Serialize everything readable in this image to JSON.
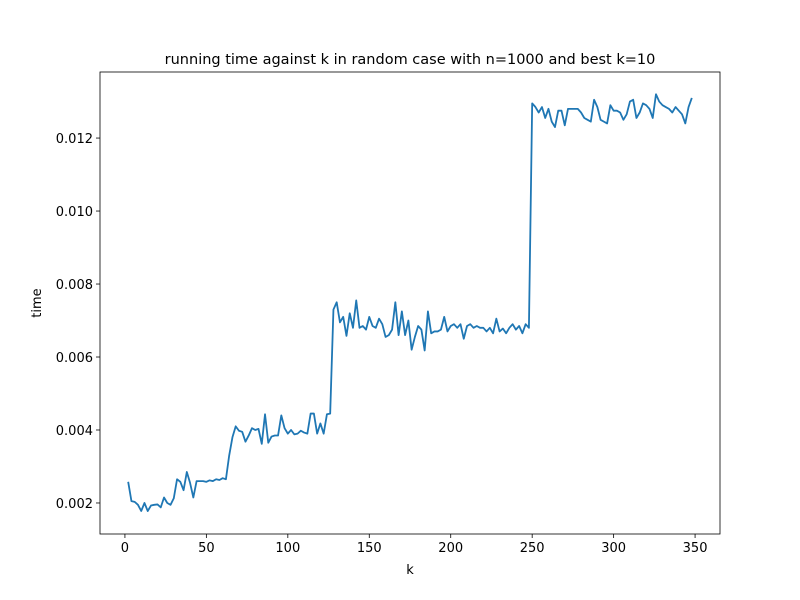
{
  "chart_data": {
    "type": "line",
    "title": "running time against k in random case with n=1000 and best k=10",
    "x_label": "k",
    "y_label": "time",
    "x": [
      2,
      4,
      6,
      8,
      10,
      12,
      14,
      16,
      18,
      20,
      22,
      24,
      26,
      28,
      30,
      32,
      34,
      36,
      38,
      40,
      42,
      44,
      46,
      48,
      50,
      52,
      54,
      56,
      58,
      60,
      62,
      64,
      66,
      68,
      70,
      72,
      74,
      76,
      78,
      80,
      82,
      84,
      86,
      88,
      90,
      92,
      94,
      96,
      98,
      100,
      102,
      104,
      106,
      108,
      110,
      112,
      114,
      116,
      118,
      120,
      122,
      124,
      126,
      128,
      130,
      132,
      134,
      136,
      138,
      140,
      142,
      144,
      146,
      148,
      150,
      152,
      154,
      156,
      158,
      160,
      162,
      164,
      166,
      168,
      170,
      172,
      174,
      176,
      178,
      180,
      182,
      184,
      186,
      188,
      190,
      192,
      194,
      196,
      198,
      200,
      202,
      204,
      206,
      208,
      210,
      212,
      214,
      216,
      218,
      220,
      222,
      224,
      226,
      228,
      230,
      232,
      234,
      236,
      238,
      240,
      242,
      244,
      246,
      248,
      250,
      252,
      254,
      256,
      258,
      260,
      262,
      264,
      266,
      268,
      270,
      272,
      274,
      276,
      278,
      280,
      282,
      284,
      286,
      288,
      290,
      292,
      294,
      296,
      298,
      300,
      302,
      304,
      306,
      308,
      310,
      312,
      314,
      316,
      318,
      320,
      322,
      324,
      326,
      328,
      330,
      332,
      334,
      336,
      338,
      340,
      342,
      344,
      346,
      348
    ],
    "series": [
      {
        "name": "time",
        "color": "#1f77b4",
        "values": [
          0.00258,
          0.00205,
          0.00203,
          0.00195,
          0.00178,
          0.002,
          0.00178,
          0.00193,
          0.00195,
          0.00196,
          0.00188,
          0.00215,
          0.002,
          0.00195,
          0.00213,
          0.00265,
          0.00258,
          0.00235,
          0.00285,
          0.00255,
          0.00215,
          0.0026,
          0.0026,
          0.0026,
          0.00258,
          0.00262,
          0.0026,
          0.00265,
          0.00263,
          0.00268,
          0.00265,
          0.0033,
          0.0038,
          0.0041,
          0.00398,
          0.00395,
          0.00368,
          0.00385,
          0.00405,
          0.004,
          0.00403,
          0.00362,
          0.00443,
          0.00365,
          0.00382,
          0.00385,
          0.00385,
          0.0044,
          0.00405,
          0.0039,
          0.004,
          0.00388,
          0.0039,
          0.00398,
          0.00393,
          0.0039,
          0.00445,
          0.00445,
          0.0039,
          0.00418,
          0.0039,
          0.00443,
          0.00445,
          0.0073,
          0.0075,
          0.00695,
          0.0071,
          0.00658,
          0.0072,
          0.0068,
          0.00755,
          0.0068,
          0.00685,
          0.00675,
          0.0071,
          0.00685,
          0.0068,
          0.00705,
          0.0069,
          0.00655,
          0.0066,
          0.00675,
          0.0075,
          0.0066,
          0.00725,
          0.0066,
          0.007,
          0.0062,
          0.00655,
          0.00685,
          0.00675,
          0.00618,
          0.00725,
          0.00665,
          0.0067,
          0.0067,
          0.00675,
          0.0071,
          0.0067,
          0.00685,
          0.0069,
          0.0068,
          0.0069,
          0.0065,
          0.00685,
          0.0069,
          0.0068,
          0.00685,
          0.0068,
          0.0068,
          0.0067,
          0.0068,
          0.00665,
          0.00705,
          0.0067,
          0.00678,
          0.00665,
          0.0068,
          0.0069,
          0.00675,
          0.00685,
          0.00665,
          0.0069,
          0.0068,
          0.01295,
          0.01285,
          0.0127,
          0.01285,
          0.01255,
          0.0128,
          0.01245,
          0.0123,
          0.01275,
          0.01275,
          0.01235,
          0.0128,
          0.0128,
          0.0128,
          0.0128,
          0.0127,
          0.01255,
          0.0125,
          0.01245,
          0.01305,
          0.01285,
          0.0125,
          0.01245,
          0.0124,
          0.0129,
          0.01275,
          0.01275,
          0.0127,
          0.0125,
          0.01265,
          0.013,
          0.01305,
          0.01255,
          0.0127,
          0.01295,
          0.0129,
          0.0128,
          0.01255,
          0.0132,
          0.013,
          0.0129,
          0.01285,
          0.0128,
          0.0127,
          0.01285,
          0.01275,
          0.01265,
          0.0124,
          0.01285,
          0.0131
        ]
      }
    ],
    "xlim": [
      -15.3,
      365.3
    ],
    "xticks": [
      0,
      50,
      100,
      150,
      200,
      250,
      300,
      350
    ],
    "ylim": [
      0.00115,
      0.01381
    ],
    "yticks": [
      0.002,
      0.004,
      0.006,
      0.008,
      {
        "value": 0.01,
        "label": "0.010"
      },
      0.012
    ],
    "grid": false
  }
}
